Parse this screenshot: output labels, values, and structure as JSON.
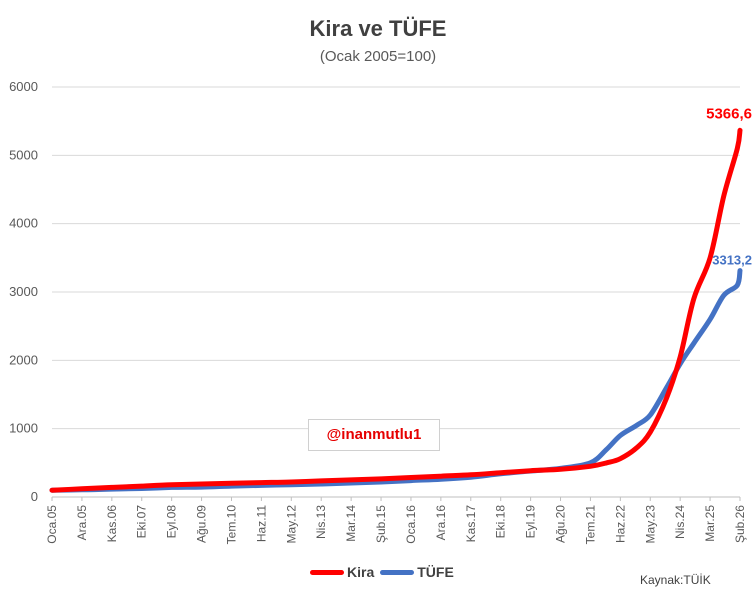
{
  "chart_data": {
    "type": "line",
    "title": "Kira ve TÜFE",
    "subtitle": "(Ocak 2005=100)",
    "xlabel": "",
    "ylabel": "",
    "ylim": [
      0,
      6000
    ],
    "yticks": [
      0,
      1000,
      2000,
      3000,
      4000,
      5000,
      6000
    ],
    "x_tick_labels": [
      "Oca.05",
      "Ara.05",
      "Kas.06",
      "Eki.07",
      "Eyl.08",
      "Ağu.09",
      "Tem.10",
      "Haz.11",
      "May.12",
      "Nis.13",
      "Mar.14",
      "Şub.15",
      "Oca.16",
      "Ara.16",
      "Kas.17",
      "Eki.18",
      "Eyl.19",
      "Ağu.20",
      "Tem.21",
      "Haz.22",
      "May.23",
      "Nis.24",
      "Mar.25",
      "Şub.26"
    ],
    "grid": true,
    "legend_position": "bottom",
    "series": [
      {
        "name": "Kira",
        "color": "#ff0000",
        "points": [
          [
            "Oca.05",
            100
          ],
          [
            "Ara.05",
            120
          ],
          [
            "Kas.06",
            140
          ],
          [
            "Eki.07",
            160
          ],
          [
            "Eyl.08",
            180
          ],
          [
            "Ağu.09",
            190
          ],
          [
            "Tem.10",
            200
          ],
          [
            "Haz.11",
            210
          ],
          [
            "May.12",
            220
          ],
          [
            "Nis.13",
            235
          ],
          [
            "Mar.14",
            250
          ],
          [
            "Şub.15",
            265
          ],
          [
            "Oca.16",
            285
          ],
          [
            "Ara.16",
            305
          ],
          [
            "Kas.17",
            325
          ],
          [
            "Eki.18",
            355
          ],
          [
            "Eyl.19",
            385
          ],
          [
            "Ağu.20",
            405
          ],
          [
            "Tem.21",
            450
          ],
          [
            "Oca.22",
            500
          ],
          [
            "Haz.22",
            560
          ],
          [
            "Ara.22",
            720
          ],
          [
            "May.23",
            950
          ],
          [
            "Kas.23",
            1450
          ],
          [
            "Nis.24",
            2050
          ],
          [
            "Eyl.24",
            2900
          ],
          [
            "Mar.25",
            3500
          ],
          [
            "Ağu.25",
            4400
          ],
          [
            "Oca.26",
            5100
          ],
          [
            "Şub.26",
            5366.6
          ]
        ],
        "last_label": "5366,6"
      },
      {
        "name": "TÜFE",
        "color": "#4472c4",
        "points": [
          [
            "Oca.05",
            100
          ],
          [
            "Ara.05",
            105
          ],
          [
            "Kas.06",
            115
          ],
          [
            "Eki.07",
            125
          ],
          [
            "Eyl.08",
            140
          ],
          [
            "Ağu.09",
            145
          ],
          [
            "Tem.10",
            160
          ],
          [
            "Haz.11",
            170
          ],
          [
            "May.12",
            180
          ],
          [
            "Nis.13",
            190
          ],
          [
            "Mar.14",
            205
          ],
          [
            "Şub.15",
            220
          ],
          [
            "Oca.16",
            240
          ],
          [
            "Ara.16",
            260
          ],
          [
            "Kas.17",
            290
          ],
          [
            "Eki.18",
            340
          ],
          [
            "Eyl.19",
            380
          ],
          [
            "Ağu.20",
            420
          ],
          [
            "Tem.21",
            500
          ],
          [
            "Oca.22",
            700
          ],
          [
            "Haz.22",
            900
          ],
          [
            "Ara.22",
            1050
          ],
          [
            "May.23",
            1200
          ],
          [
            "Kas.23",
            1600
          ],
          [
            "Nis.24",
            1950
          ],
          [
            "Eyl.24",
            2250
          ],
          [
            "Mar.25",
            2600
          ],
          [
            "Ağu.25",
            2950
          ],
          [
            "Oca.26",
            3100
          ],
          [
            "Şub.26",
            3313.2
          ]
        ],
        "last_label": "3313,2"
      }
    ]
  },
  "watermark": "@inanmutlu1",
  "legend": [
    "Kira",
    "TÜFE"
  ],
  "source": "Kaynak:TÜİK"
}
